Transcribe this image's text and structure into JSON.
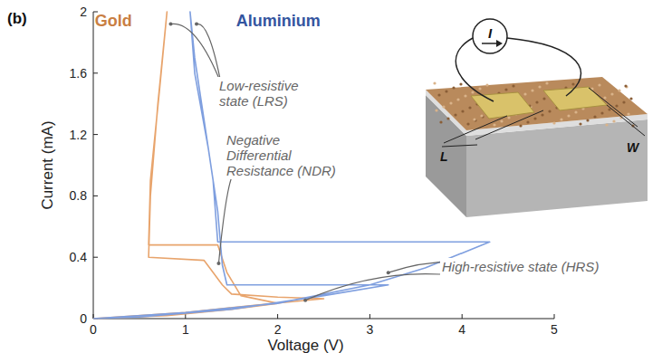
{
  "chart_data": {
    "type": "line",
    "panel": "(b)",
    "x_label": "Voltage (V)",
    "y_label": "Current (mA)",
    "xlim": [
      0,
      5
    ],
    "ylim": [
      0,
      2
    ],
    "xticks": [
      0,
      1,
      2,
      3,
      4,
      5
    ],
    "yticks": [
      0,
      0.4,
      0.8,
      1.2,
      1.6,
      2
    ],
    "grid": false,
    "series": [
      {
        "name": "Gold",
        "color": "#e8a46c",
        "x": [
          0,
          1,
          1.8,
          2.5,
          2.0,
          1.5,
          1.4,
          1.3,
          1.2,
          0.6,
          0.62,
          0.7,
          0.8,
          0.72,
          0.62,
          0.6,
          1.35,
          1.45,
          1.6,
          2.0,
          1.5,
          0.8,
          0
        ],
        "values": [
          0,
          0.04,
          0.09,
          0.13,
          0.14,
          0.16,
          0.22,
          0.3,
          0.38,
          0.4,
          0.8,
          1.4,
          2.0,
          1.5,
          0.9,
          0.48,
          0.48,
          0.3,
          0.15,
          0.1,
          0.06,
          0.02,
          0
        ]
      },
      {
        "name": "Aluminium",
        "color": "#7f9fdf",
        "x": [
          0,
          1,
          2,
          3,
          3.6,
          4.3,
          1.35,
          1.3,
          1.2,
          1.1,
          1.05,
          1.1,
          1.25,
          1.35,
          1.4,
          1.45,
          3.2,
          2.5,
          1.5,
          0.5,
          0
        ],
        "values": [
          0,
          0.04,
          0.1,
          0.22,
          0.33,
          0.5,
          0.5,
          0.9,
          1.3,
          1.7,
          2.0,
          1.6,
          1.1,
          0.7,
          0.35,
          0.22,
          0.22,
          0.15,
          0.06,
          0.01,
          0
        ]
      }
    ],
    "annotations": [
      "Low-resistive state (LRS)",
      "Negative Differential Resistance (NDR)",
      "High-resistive state (HRS)"
    ],
    "inset": {
      "current": "I",
      "length": "L",
      "width": "W"
    }
  }
}
